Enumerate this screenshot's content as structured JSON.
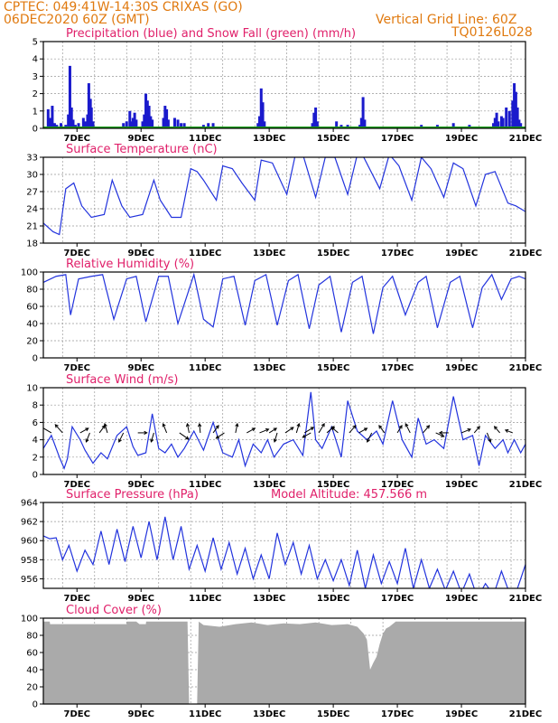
{
  "header": {
    "line1": "CPTEC:   049:41W-14:30S   CRIXAS (GO)",
    "line2": "06DEC2020 60Z (GMT)",
    "grid_note": "Vertical Grid Line: 60Z",
    "code": "TQ0126L028"
  },
  "colors": {
    "header": "#e07a10",
    "panel_title": "#e0206a",
    "precip": "#1a1acc",
    "snow": "#1aa01a",
    "line": "#2233dd",
    "cloud": "#aaaaaa",
    "grid": "#999999"
  },
  "chart_data": [
    {
      "id": "precip",
      "type": "bar",
      "title": "Precipitation (blue) and Snow Fall (green) (mm/h)",
      "ylim": [
        0,
        5
      ],
      "yticks": [
        0,
        1,
        2,
        3,
        4,
        5
      ],
      "xticks": [
        "7DEC",
        "9DEC",
        "11DEC",
        "13DEC",
        "15DEC",
        "17DEC",
        "19DEC",
        "21DEC"
      ],
      "x_range_days": [
        0,
        15.05
      ],
      "series": [
        {
          "values": [
            [
              0.15,
              1.1
            ],
            [
              0.2,
              0.6
            ],
            [
              0.28,
              1.3
            ],
            [
              0.35,
              0.3
            ],
            [
              0.42,
              0.2
            ],
            [
              0.55,
              0.3
            ],
            [
              0.7,
              0.2
            ],
            [
              0.78,
              0.8
            ],
            [
              0.83,
              3.6
            ],
            [
              0.88,
              1.2
            ],
            [
              0.93,
              0.5
            ],
            [
              1.0,
              0.2
            ],
            [
              1.1,
              0.3
            ],
            [
              1.25,
              0.6
            ],
            [
              1.32,
              0.4
            ],
            [
              1.38,
              0.8
            ],
            [
              1.42,
              2.6
            ],
            [
              1.47,
              1.7
            ],
            [
              1.5,
              1.2
            ],
            [
              1.55,
              0.4
            ],
            [
              2.5,
              0.3
            ],
            [
              2.6,
              0.4
            ],
            [
              2.7,
              1.0
            ],
            [
              2.75,
              0.4
            ],
            [
              2.8,
              0.6
            ],
            [
              2.85,
              0.9
            ],
            [
              2.9,
              0.5
            ],
            [
              3.1,
              0.4
            ],
            [
              3.15,
              0.8
            ],
            [
              3.2,
              2.0
            ],
            [
              3.25,
              1.6
            ],
            [
              3.3,
              1.3
            ],
            [
              3.35,
              0.7
            ],
            [
              3.4,
              0.5
            ],
            [
              3.75,
              0.6
            ],
            [
              3.8,
              1.3
            ],
            [
              3.85,
              1.1
            ],
            [
              3.9,
              0.5
            ],
            [
              4.1,
              0.6
            ],
            [
              4.2,
              0.5
            ],
            [
              4.3,
              0.3
            ],
            [
              4.4,
              0.3
            ],
            [
              5.0,
              0.2
            ],
            [
              5.15,
              0.3
            ],
            [
              5.3,
              0.3
            ],
            [
              6.7,
              0.3
            ],
            [
              6.75,
              0.7
            ],
            [
              6.8,
              2.3
            ],
            [
              6.85,
              1.5
            ],
            [
              6.9,
              0.4
            ],
            [
              8.3,
              0.1
            ],
            [
              8.4,
              0.3
            ],
            [
              8.45,
              0.9
            ],
            [
              8.5,
              1.2
            ],
            [
              8.55,
              0.4
            ],
            [
              9.15,
              0.4
            ],
            [
              9.3,
              0.2
            ],
            [
              9.5,
              0.2
            ],
            [
              9.88,
              0.2
            ],
            [
              9.93,
              0.6
            ],
            [
              9.98,
              1.8
            ],
            [
              10.03,
              0.5
            ],
            [
              11.8,
              0.2
            ],
            [
              12.3,
              0.2
            ],
            [
              12.8,
              0.3
            ],
            [
              13.3,
              0.2
            ],
            [
              14.05,
              0.3
            ],
            [
              14.1,
              0.6
            ],
            [
              14.15,
              0.9
            ],
            [
              14.2,
              0.4
            ],
            [
              14.3,
              0.7
            ],
            [
              14.35,
              0.6
            ],
            [
              14.45,
              1.2
            ],
            [
              14.55,
              1.0
            ],
            [
              14.65,
              1.6
            ],
            [
              14.7,
              2.6
            ],
            [
              14.75,
              2.1
            ],
            [
              14.8,
              1.2
            ],
            [
              14.85,
              0.5
            ],
            [
              14.9,
              0.3
            ]
          ]
        },
        {
          "values": "constant near 0 (green baseline)"
        }
      ]
    },
    {
      "id": "temp",
      "type": "line",
      "title": "Surface Temperature (nC)",
      "ylim": [
        18,
        33
      ],
      "yticks": [
        18,
        21,
        24,
        27,
        30,
        33
      ],
      "xticks": [
        "7DEC",
        "9DEC",
        "11DEC",
        "13DEC",
        "15DEC",
        "17DEC",
        "19DEC",
        "21DEC"
      ],
      "x": [
        0,
        0.3,
        0.5,
        0.7,
        0.95,
        1.2,
        1.5,
        1.9,
        2.15,
        2.45,
        2.7,
        3.1,
        3.45,
        3.65,
        4.0,
        4.3,
        4.6,
        4.8,
        5.0,
        5.4,
        5.6,
        5.9,
        6.2,
        6.6,
        6.8,
        7.15,
        7.6,
        7.85,
        8.1,
        8.5,
        8.8,
        9.1,
        9.5,
        9.8,
        10.0,
        10.5,
        10.8,
        11.1,
        11.5,
        11.8,
        12.1,
        12.5,
        12.8,
        13.1,
        13.5,
        13.8,
        14.1,
        14.5,
        14.75,
        15.05
      ],
      "y": [
        21.5,
        20.0,
        19.5,
        27.5,
        28.5,
        24.5,
        22.5,
        23.0,
        29.0,
        24.5,
        22.5,
        23.0,
        29.0,
        25.5,
        22.5,
        22.5,
        31.0,
        30.5,
        29.0,
        25.5,
        31.5,
        31.0,
        28.5,
        25.5,
        32.5,
        32.0,
        26.5,
        33.0,
        33.5,
        26.0,
        33.0,
        33.0,
        26.5,
        33.5,
        33.0,
        27.5,
        33.5,
        31.5,
        25.5,
        33.0,
        31.0,
        26.0,
        32.0,
        31.0,
        24.5,
        30.0,
        30.5,
        25.0,
        24.5,
        23.5
      ]
    },
    {
      "id": "rh",
      "type": "line",
      "title": "Relative Humidity (%)",
      "ylim": [
        0,
        100
      ],
      "yticks": [
        0,
        20,
        40,
        60,
        80,
        100
      ],
      "xticks": [
        "7DEC",
        "9DEC",
        "11DEC",
        "13DEC",
        "15DEC",
        "17DEC",
        "19DEC",
        "21DEC"
      ],
      "x": [
        0,
        0.4,
        0.7,
        0.85,
        1.1,
        1.5,
        1.85,
        2.2,
        2.6,
        2.9,
        3.2,
        3.6,
        3.9,
        4.2,
        4.7,
        5.0,
        5.3,
        5.6,
        5.95,
        6.3,
        6.6,
        6.95,
        7.3,
        7.65,
        7.95,
        8.3,
        8.6,
        8.95,
        9.3,
        9.65,
        9.95,
        10.3,
        10.6,
        10.9,
        11.3,
        11.7,
        11.95,
        12.3,
        12.7,
        13.0,
        13.4,
        13.7,
        14.0,
        14.3,
        14.6,
        14.85,
        15.05
      ],
      "y": [
        88,
        95,
        97,
        50,
        92,
        95,
        97,
        45,
        92,
        95,
        42,
        95,
        95,
        40,
        97,
        45,
        36,
        92,
        95,
        38,
        90,
        97,
        38,
        90,
        97,
        34,
        85,
        95,
        30,
        88,
        95,
        28,
        82,
        95,
        50,
        88,
        95,
        35,
        88,
        95,
        35,
        82,
        97,
        68,
        92,
        95,
        92
      ]
    },
    {
      "id": "wind",
      "type": "line",
      "title": "Surface Wind (m/s)",
      "ylim": [
        0,
        10
      ],
      "yticks": [
        0,
        2,
        4,
        6,
        8,
        10
      ],
      "xticks": [
        "7DEC",
        "9DEC",
        "11DEC",
        "13DEC",
        "15DEC",
        "17DEC",
        "19DEC",
        "21DEC"
      ],
      "x": [
        0,
        0.25,
        0.5,
        0.65,
        0.75,
        0.9,
        1.15,
        1.3,
        1.55,
        1.8,
        2.0,
        2.3,
        2.6,
        2.8,
        2.95,
        3.2,
        3.4,
        3.6,
        3.8,
        4.0,
        4.2,
        4.4,
        4.7,
        5.0,
        5.3,
        5.6,
        5.9,
        6.1,
        6.3,
        6.55,
        6.8,
        7.0,
        7.2,
        7.5,
        7.8,
        8.1,
        8.35,
        8.5,
        8.7,
        9.0,
        9.3,
        9.5,
        9.8,
        10.1,
        10.4,
        10.6,
        10.9,
        11.2,
        11.5,
        11.7,
        11.95,
        12.2,
        12.5,
        12.8,
        13.1,
        13.4,
        13.6,
        13.8,
        14.1,
        14.35,
        14.5,
        14.7,
        14.9,
        15.05
      ],
      "y": [
        3.0,
        4.5,
        2.0,
        0.7,
        1.8,
        5.5,
        4.0,
        2.8,
        1.3,
        2.5,
        1.8,
        4.5,
        5.5,
        3.2,
        2.2,
        2.5,
        7.0,
        3.0,
        2.5,
        3.5,
        2.0,
        3.0,
        5.0,
        2.8,
        6.0,
        2.5,
        2.0,
        4.0,
        1.0,
        3.5,
        2.5,
        4.0,
        2.0,
        3.5,
        4.0,
        2.2,
        9.5,
        4.0,
        3.0,
        5.5,
        2.0,
        8.5,
        5.0,
        4.0,
        5.0,
        3.5,
        8.5,
        4.0,
        2.0,
        6.5,
        3.5,
        4.0,
        3.0,
        9.0,
        4.0,
        4.5,
        1.0,
        4.5,
        3.0,
        4.0,
        2.5,
        4.0,
        2.5,
        3.5
      ],
      "arrows": [
        {
          "x": 0.25,
          "u": -1.2,
          "v": 0.7
        },
        {
          "x": 0.6,
          "u": -0.8,
          "v": 0.9
        },
        {
          "x": 1.15,
          "u": 0.9,
          "v": 0.5
        },
        {
          "x": 1.45,
          "u": -0.4,
          "v": -1.0
        },
        {
          "x": 1.75,
          "u": 0.6,
          "v": 0.8
        },
        {
          "x": 2.0,
          "u": -0.3,
          "v": 1.0
        },
        {
          "x": 2.5,
          "u": -0.5,
          "v": -1.0
        },
        {
          "x": 2.95,
          "u": 1.0,
          "v": 0.0
        },
        {
          "x": 3.45,
          "u": -0.3,
          "v": -1.0
        },
        {
          "x": 3.85,
          "u": -0.4,
          "v": 1.0
        },
        {
          "x": 4.25,
          "u": 1.0,
          "v": -0.7
        },
        {
          "x": 4.55,
          "u": -0.2,
          "v": 1.0
        },
        {
          "x": 4.9,
          "u": -0.1,
          "v": 1.0
        },
        {
          "x": 5.3,
          "u": 0.6,
          "v": 0.8
        },
        {
          "x": 5.65,
          "u": -0.9,
          "v": -0.6
        },
        {
          "x": 6.0,
          "u": 0.2,
          "v": 1.0
        },
        {
          "x": 6.35,
          "u": 0.9,
          "v": 0.5
        },
        {
          "x": 6.75,
          "u": 1.0,
          "v": 0.4
        },
        {
          "x": 7.05,
          "u": 0.8,
          "v": 0.5
        },
        {
          "x": 7.3,
          "u": -0.3,
          "v": -1.0
        },
        {
          "x": 7.55,
          "u": 0.9,
          "v": 0.6
        },
        {
          "x": 7.9,
          "u": 0.3,
          "v": 1.0
        },
        {
          "x": 8.15,
          "u": 1.0,
          "v": 0.6
        },
        {
          "x": 8.35,
          "u": -0.9,
          "v": -0.5
        },
        {
          "x": 8.6,
          "u": 0.6,
          "v": 1.0
        },
        {
          "x": 8.85,
          "u": 0.8,
          "v": 0.7
        },
        {
          "x": 9.2,
          "u": -0.7,
          "v": 0.6
        },
        {
          "x": 9.55,
          "u": 0.7,
          "v": 0.8
        },
        {
          "x": 9.85,
          "u": 0.9,
          "v": 0.5
        },
        {
          "x": 10.25,
          "u": -0.5,
          "v": -1.0
        },
        {
          "x": 10.65,
          "u": -0.6,
          "v": 0.8
        },
        {
          "x": 11.05,
          "u": 0.5,
          "v": 0.8
        },
        {
          "x": 11.45,
          "u": -0.5,
          "v": 1.0
        },
        {
          "x": 11.85,
          "u": 0.7,
          "v": 0.8
        },
        {
          "x": 12.25,
          "u": 0.9,
          "v": -0.4
        },
        {
          "x": 12.65,
          "u": -1.0,
          "v": 0.0
        },
        {
          "x": 13.05,
          "u": 1.0,
          "v": 0.4
        },
        {
          "x": 13.45,
          "u": 0.6,
          "v": 0.7
        },
        {
          "x": 13.85,
          "u": 0.4,
          "v": -1.0
        },
        {
          "x": 14.25,
          "u": -0.6,
          "v": 0.7
        },
        {
          "x": 14.65,
          "u": -0.8,
          "v": 0.3
        }
      ]
    },
    {
      "id": "press",
      "type": "line",
      "title": "Surface Pressure (hPa)",
      "subtitle": "Model Altitude: 457.566 m",
      "ylim": [
        955,
        964
      ],
      "yticks": [
        956,
        958,
        960,
        962,
        964
      ],
      "xticks": [
        "7DEC",
        "9DEC",
        "11DEC",
        "13DEC",
        "15DEC",
        "17DEC",
        "19DEC",
        "21DEC"
      ],
      "x": [
        0,
        0.2,
        0.4,
        0.6,
        0.8,
        1.05,
        1.3,
        1.55,
        1.8,
        2.05,
        2.3,
        2.55,
        2.8,
        3.05,
        3.3,
        3.55,
        3.8,
        4.05,
        4.3,
        4.55,
        4.8,
        5.05,
        5.3,
        5.55,
        5.8,
        6.05,
        6.3,
        6.55,
        6.8,
        7.05,
        7.3,
        7.55,
        7.8,
        8.05,
        8.3,
        8.55,
        8.8,
        9.05,
        9.3,
        9.55,
        9.8,
        10.05,
        10.3,
        10.55,
        10.8,
        11.05,
        11.3,
        11.55,
        11.8,
        12.05,
        12.3,
        12.55,
        12.8,
        13.05,
        13.3,
        13.55,
        13.8,
        14.05,
        14.3,
        14.55,
        14.8,
        15.05
      ],
      "y": [
        960.5,
        960.2,
        960.3,
        958.0,
        959.5,
        956.8,
        959.0,
        957.5,
        961.0,
        957.5,
        961.2,
        957.8,
        961.5,
        958.2,
        962.0,
        958.0,
        962.5,
        958.0,
        961.5,
        957.0,
        959.5,
        956.8,
        960.3,
        957.0,
        959.8,
        956.5,
        959.2,
        956.0,
        958.5,
        956.0,
        960.8,
        957.5,
        959.8,
        956.5,
        959.5,
        956.0,
        958.0,
        955.8,
        958.0,
        955.3,
        959.0,
        955.0,
        958.5,
        955.5,
        957.8,
        955.5,
        959.2,
        955.0,
        958.0,
        955.0,
        957.0,
        954.8,
        956.8,
        954.5,
        956.5,
        954.0,
        955.5,
        954.3,
        956.8,
        954.5,
        955.0,
        957.5
      ]
    },
    {
      "id": "cloud",
      "type": "area",
      "title": "Cloud Cover (%)",
      "ylim": [
        0,
        100
      ],
      "yticks": [
        0,
        20,
        40,
        60,
        80,
        100
      ],
      "xticks": [
        "7DEC",
        "9DEC",
        "11DEC",
        "13DEC",
        "15DEC",
        "17DEC",
        "19DEC",
        "21DEC"
      ],
      "x": [
        0,
        0.2,
        0.21,
        2.6,
        2.61,
        2.9,
        3.0,
        3.2,
        3.21,
        4.5,
        4.55,
        4.8,
        4.85,
        5.0,
        5.5,
        6.0,
        6.5,
        7.0,
        7.5,
        8.0,
        8.5,
        9.0,
        9.5,
        9.8,
        10.0,
        10.1,
        10.2,
        10.3,
        10.4,
        10.5,
        10.6,
        10.7,
        10.8,
        11.0,
        11.2,
        11.4,
        11.6,
        11.8,
        12.0,
        12.5,
        13.0,
        13.5,
        14.0,
        14.5,
        15.05
      ],
      "y": [
        96,
        96,
        93,
        93,
        96,
        96,
        93,
        93,
        96,
        96,
        0,
        0,
        96,
        92,
        90,
        93,
        95,
        92,
        94,
        93,
        95,
        92,
        93,
        90,
        82,
        75,
        40,
        48,
        55,
        70,
        82,
        88,
        90,
        96,
        96,
        96,
        96,
        96,
        96,
        96,
        96,
        96,
        96,
        96,
        96
      ]
    }
  ]
}
